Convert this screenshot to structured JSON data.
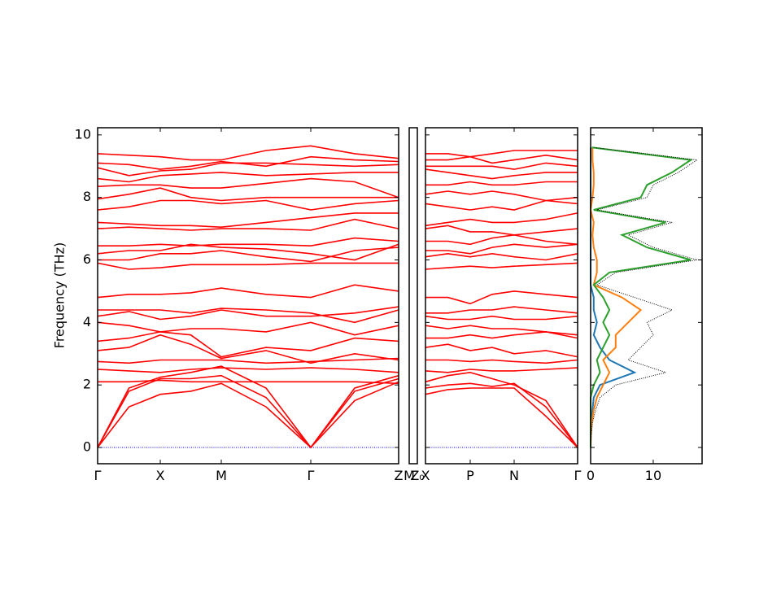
{
  "chart_data": [
    {
      "type": "bands",
      "ylabel": "Frequency (THz)",
      "color": "#ff0000",
      "hline": 0,
      "hline_color": "#0000ff",
      "xlim": [
        0,
        3.7
      ],
      "ylim": [
        -0.52,
        10.23
      ],
      "yticks": [
        0,
        2,
        4,
        6,
        8,
        10
      ],
      "ytick_labels": true,
      "xticks": [
        {
          "value": 0,
          "label": "Γ"
        },
        {
          "value": 0.77,
          "label": "X"
        },
        {
          "value": 1.52,
          "label": "M"
        },
        {
          "value": 2.62,
          "label": "Γ"
        },
        {
          "value": 3.7,
          "label": "Z"
        }
      ],
      "x": [
        0,
        0.385,
        0.77,
        1.145,
        1.52,
        2.07,
        2.62,
        3.16,
        3.7
      ],
      "bands": [
        [
          0,
          1.3,
          1.7,
          1.8,
          2.05,
          1.3,
          0,
          1.5,
          2.1
        ],
        [
          0,
          1.8,
          2.2,
          2.2,
          2.3,
          1.6,
          0,
          1.8,
          2.2
        ],
        [
          0,
          1.9,
          2.25,
          2.4,
          2.6,
          1.9,
          0,
          1.9,
          2.3
        ],
        [
          2.1,
          2.1,
          2.15,
          2.1,
          2.1,
          2.1,
          2.1,
          2.1,
          2.05
        ],
        [
          2.5,
          2.45,
          2.4,
          2.5,
          2.55,
          2.5,
          2.55,
          2.5,
          2.4
        ],
        [
          2.75,
          2.7,
          2.8,
          2.8,
          2.8,
          2.7,
          2.75,
          2.8,
          2.85
        ],
        [
          3.1,
          3.2,
          3.6,
          3.3,
          2.85,
          3.1,
          2.7,
          3.0,
          2.8
        ],
        [
          3.4,
          3.5,
          3.7,
          3.6,
          2.9,
          3.2,
          3.1,
          3.5,
          3.4
        ],
        [
          4.0,
          3.9,
          3.7,
          3.8,
          3.8,
          3.7,
          4.0,
          3.6,
          3.9
        ],
        [
          4.2,
          4.35,
          4.1,
          4.2,
          4.4,
          4.2,
          4.2,
          4.3,
          4.5
        ],
        [
          4.4,
          4.4,
          4.4,
          4.3,
          4.45,
          4.4,
          4.3,
          4.0,
          4.4
        ],
        [
          4.8,
          4.9,
          4.9,
          4.95,
          5.1,
          4.9,
          4.8,
          5.2,
          5.0
        ],
        [
          5.9,
          5.7,
          5.75,
          5.85,
          5.85,
          5.85,
          5.9,
          5.9,
          5.9
        ],
        [
          6.0,
          6.0,
          6.2,
          6.2,
          6.3,
          6.1,
          5.95,
          6.3,
          6.4
        ],
        [
          6.2,
          6.3,
          6.3,
          6.5,
          6.4,
          6.35,
          6.2,
          6.0,
          6.5
        ],
        [
          6.45,
          6.45,
          6.5,
          6.45,
          6.5,
          6.5,
          6.45,
          6.7,
          6.6
        ],
        [
          7.0,
          7.05,
          7.0,
          6.95,
          7.0,
          7.0,
          6.95,
          7.3,
          7.0
        ],
        [
          7.2,
          7.15,
          7.1,
          7.1,
          7.05,
          7.2,
          7.35,
          7.5,
          7.5
        ],
        [
          7.6,
          7.7,
          7.9,
          7.9,
          7.8,
          7.9,
          7.6,
          7.8,
          7.9
        ],
        [
          7.95,
          8.1,
          8.3,
          8.0,
          7.9,
          8.0,
          8.0,
          8.0,
          8.0
        ],
        [
          8.35,
          8.4,
          8.4,
          8.3,
          8.3,
          8.45,
          8.6,
          8.5,
          8.0
        ],
        [
          8.6,
          8.5,
          8.7,
          8.75,
          8.8,
          8.7,
          8.75,
          8.8,
          8.8
        ],
        [
          8.95,
          8.7,
          8.85,
          8.9,
          9.1,
          9.1,
          9.05,
          9.0,
          9.05
        ],
        [
          9.1,
          9.05,
          8.9,
          9.0,
          9.15,
          9.0,
          9.3,
          9.2,
          9.15
        ],
        [
          9.4,
          9.35,
          9.3,
          9.2,
          9.2,
          9.5,
          9.65,
          9.4,
          9.25
        ]
      ]
    },
    {
      "type": "bands",
      "xlim": [
        0,
        1
      ],
      "ylim": [
        -0.52,
        10.23
      ],
      "xticks": [
        {
          "value": 0,
          "label": "M"
        },
        {
          "value": 1,
          "label": "Z₀"
        }
      ]
    },
    {
      "type": "bands",
      "color": "#ff0000",
      "hline": 0,
      "hline_color": "#0000ff",
      "xlim": [
        0,
        1.87
      ],
      "ylim": [
        -0.52,
        10.23
      ],
      "yticks": [
        0,
        2,
        4,
        6,
        8,
        10
      ],
      "ytick_labels": false,
      "xticks": [
        {
          "value": 0,
          "label": "X"
        },
        {
          "value": 0.55,
          "label": "P"
        },
        {
          "value": 1.09,
          "label": "N"
        },
        {
          "value": 1.87,
          "label": "Γ"
        }
      ],
      "x": [
        0,
        0.275,
        0.55,
        0.82,
        1.09,
        1.48,
        1.87
      ],
      "bands": [
        [
          1.7,
          1.85,
          1.9,
          1.9,
          1.9,
          1.0,
          0
        ],
        [
          1.9,
          2.0,
          2.05,
          1.95,
          2.05,
          1.3,
          0
        ],
        [
          2.1,
          2.3,
          2.4,
          2.2,
          2.0,
          1.5,
          0
        ],
        [
          2.45,
          2.4,
          2.5,
          2.45,
          2.45,
          2.5,
          2.55
        ],
        [
          2.8,
          2.8,
          2.75,
          2.8,
          2.75,
          2.7,
          2.8
        ],
        [
          3.2,
          3.3,
          3.1,
          3.2,
          3.0,
          3.1,
          2.9
        ],
        [
          3.5,
          3.5,
          3.6,
          3.5,
          3.6,
          3.7,
          3.6
        ],
        [
          3.9,
          3.8,
          3.9,
          3.8,
          3.8,
          3.7,
          3.5
        ],
        [
          4.2,
          4.1,
          4.1,
          4.2,
          4.1,
          4.1,
          4.2
        ],
        [
          4.3,
          4.3,
          4.4,
          4.4,
          4.5,
          4.4,
          4.3
        ],
        [
          4.8,
          4.8,
          4.6,
          4.9,
          5.0,
          4.9,
          4.8
        ],
        [
          5.7,
          5.75,
          5.8,
          5.75,
          5.8,
          5.85,
          5.9
        ],
        [
          6.1,
          6.2,
          6.1,
          6.2,
          6.1,
          6.0,
          6.2
        ],
        [
          6.3,
          6.3,
          6.2,
          6.4,
          6.5,
          6.4,
          6.5
        ],
        [
          6.6,
          6.6,
          6.5,
          6.7,
          6.8,
          6.6,
          6.5
        ],
        [
          7.0,
          7.1,
          6.9,
          6.9,
          6.8,
          6.9,
          7.0
        ],
        [
          7.1,
          7.2,
          7.3,
          7.2,
          7.2,
          7.3,
          7.5
        ],
        [
          7.8,
          7.7,
          7.6,
          7.7,
          7.6,
          7.9,
          7.8
        ],
        [
          8.1,
          8.2,
          8.1,
          8.2,
          8.1,
          7.9,
          8.0
        ],
        [
          8.4,
          8.4,
          8.5,
          8.4,
          8.4,
          8.5,
          8.5
        ],
        [
          8.9,
          8.8,
          8.7,
          8.6,
          8.7,
          8.8,
          8.8
        ],
        [
          9.0,
          9.0,
          9.0,
          9.0,
          8.9,
          9.1,
          9.0
        ],
        [
          9.2,
          9.2,
          9.3,
          9.1,
          9.2,
          9.35,
          9.2
        ],
        [
          9.4,
          9.4,
          9.3,
          9.4,
          9.5,
          9.5,
          9.5
        ]
      ]
    },
    {
      "type": "dos",
      "xlim": [
        0,
        17.8
      ],
      "ylim": [
        -0.52,
        10.23
      ],
      "xticks": [
        0,
        10
      ],
      "yticks": [
        0,
        2,
        4,
        6,
        8,
        10
      ],
      "ytick_labels": false,
      "y": [
        0,
        0.4,
        0.8,
        1.2,
        1.6,
        2.0,
        2.4,
        2.8,
        3.2,
        3.6,
        4.0,
        4.4,
        4.8,
        5.2,
        5.6,
        6.0,
        6.4,
        6.8,
        7.2,
        7.6,
        8.0,
        8.4,
        8.8,
        9.2,
        9.6
      ],
      "series": [
        {
          "color": "#1f77b4",
          "values": [
            0,
            0,
            0.1,
            0.3,
            0.5,
            1.5,
            7,
            3,
            1.5,
            0.5,
            1,
            0.5,
            0.5,
            0,
            0,
            0,
            0,
            0,
            0,
            0,
            0,
            0,
            0,
            0,
            0
          ]
        },
        {
          "color": "#ff7f0e",
          "values": [
            0,
            0.05,
            0.2,
            0.5,
            1,
            2,
            3,
            2,
            4,
            4,
            6,
            8,
            5,
            0.5,
            1,
            1,
            0.5,
            0.3,
            0.5,
            0,
            0.3,
            0.5,
            0.5,
            0.3,
            0.3
          ]
        },
        {
          "color": "#2ca02c",
          "values": [
            0,
            0,
            0,
            0,
            0,
            0.5,
            1.5,
            1,
            2,
            3,
            2,
            3,
            2,
            0.5,
            3,
            16,
            9,
            5,
            12,
            0.5,
            8,
            9,
            13,
            16,
            0.2
          ]
        },
        {
          "color": "#000000",
          "dash": true,
          "values": [
            0,
            0.1,
            0.3,
            0.8,
            1.5,
            4,
            12,
            6,
            8,
            10,
            9,
            13,
            7,
            1,
            4,
            17,
            10,
            6,
            13,
            1,
            9,
            10,
            14,
            17,
            0.5
          ]
        }
      ]
    }
  ]
}
